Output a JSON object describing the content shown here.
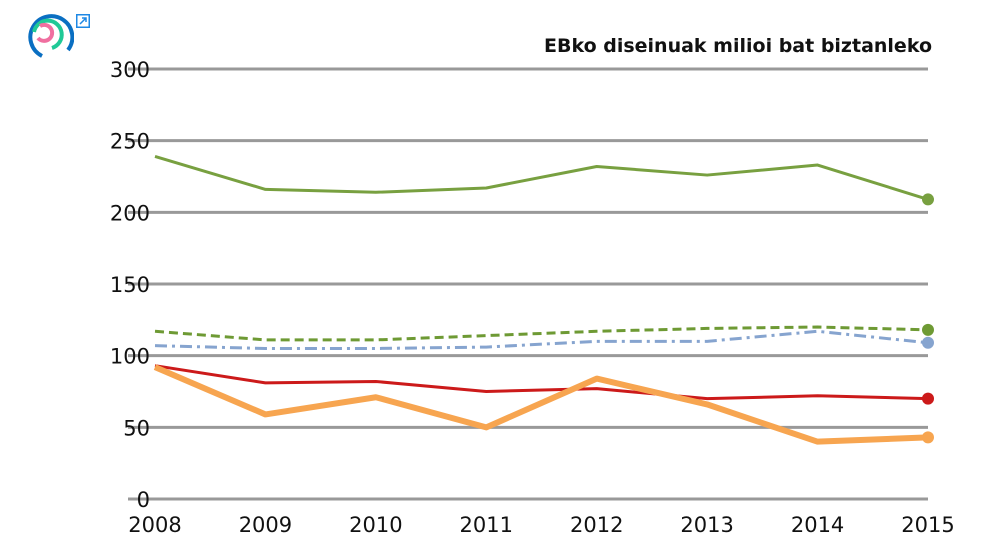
{
  "logo": {
    "icon": "circular-logo-icon",
    "colors": [
      "#0a6fc2",
      "#20c997",
      "#f06fa0"
    ]
  },
  "expand": {
    "icon": "external-link-icon",
    "color": "#1e88e5"
  },
  "chart_data": {
    "type": "line",
    "title": "EBko diseinuak milioi bat biztanleko",
    "xlabel": "",
    "ylabel": "",
    "x": [
      "2008",
      "2009",
      "2010",
      "2011",
      "2012",
      "2013",
      "2014",
      "2015"
    ],
    "ylim": [
      0,
      300
    ],
    "yticks": [
      "0",
      "50",
      "100",
      "150",
      "200",
      "250",
      "300"
    ],
    "ytick_values": [
      0,
      50,
      100,
      150,
      200,
      250,
      300
    ],
    "grid": true,
    "legend": "none",
    "series": [
      {
        "color": "#78a040",
        "style": "solid",
        "width": 3,
        "values": [
          239,
          216,
          214,
          217,
          232,
          226,
          233,
          209
        ]
      },
      {
        "color": "#6e9a34",
        "style": "dashed",
        "width": 3,
        "values": [
          117,
          111,
          111,
          114,
          117,
          119,
          120,
          118
        ]
      },
      {
        "color": "#86a4cf",
        "style": "dashdot",
        "width": 3,
        "values": [
          107,
          105,
          105,
          106,
          110,
          110,
          117,
          109
        ]
      },
      {
        "color": "#cc1a1a",
        "style": "solid",
        "width": 3,
        "values": [
          93,
          81,
          82,
          75,
          77,
          70,
          72,
          70
        ]
      },
      {
        "color": "#f7a550",
        "style": "solid",
        "width": 6,
        "values": [
          92,
          59,
          71,
          50,
          84,
          66,
          40,
          43
        ]
      }
    ]
  }
}
